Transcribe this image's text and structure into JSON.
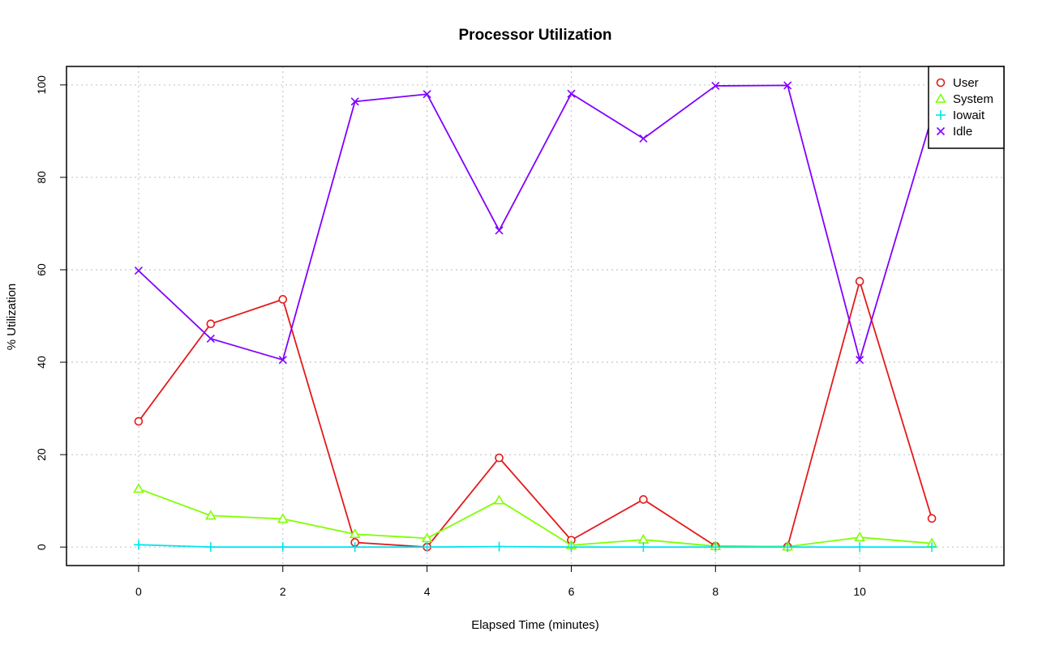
{
  "chart_data": {
    "type": "line",
    "title": "Processor Utilization",
    "xlabel": "Elapsed Time (minutes)",
    "ylabel": "% Utilization",
    "xlim": [
      -1,
      12
    ],
    "ylim": [
      -4,
      104
    ],
    "xticks": [
      0,
      2,
      4,
      6,
      8,
      10
    ],
    "yticks": [
      0,
      20,
      40,
      60,
      80,
      100
    ],
    "grid": true,
    "legend_position": "top-right",
    "x": [
      0,
      1,
      2,
      3,
      4,
      5,
      6,
      7,
      8,
      9,
      10,
      11
    ],
    "series": [
      {
        "name": "User",
        "color": "#e31a1c",
        "marker": "circle",
        "values": [
          27.2,
          48.3,
          53.6,
          1.0,
          0.0,
          19.3,
          1.5,
          10.3,
          0.2,
          0.1,
          57.5,
          6.2
        ]
      },
      {
        "name": "System",
        "color": "#80ff00",
        "marker": "triangle",
        "values": [
          12.6,
          6.8,
          6.1,
          2.8,
          1.9,
          10.1,
          0.4,
          1.6,
          0.2,
          0.1,
          2.1,
          0.8
        ]
      },
      {
        "name": "Iowait",
        "color": "#00e5ee",
        "marker": "plus",
        "values": [
          0.5,
          0.0,
          0.0,
          0.0,
          0.0,
          0.1,
          0.0,
          0.0,
          0.0,
          0.0,
          0.0,
          0.0
        ]
      },
      {
        "name": "Idle",
        "color": "#8000ff",
        "marker": "cross",
        "values": [
          59.8,
          45.1,
          40.5,
          96.4,
          98.0,
          68.5,
          98.1,
          88.4,
          99.8,
          99.9,
          40.5,
          93.0
        ]
      }
    ]
  }
}
